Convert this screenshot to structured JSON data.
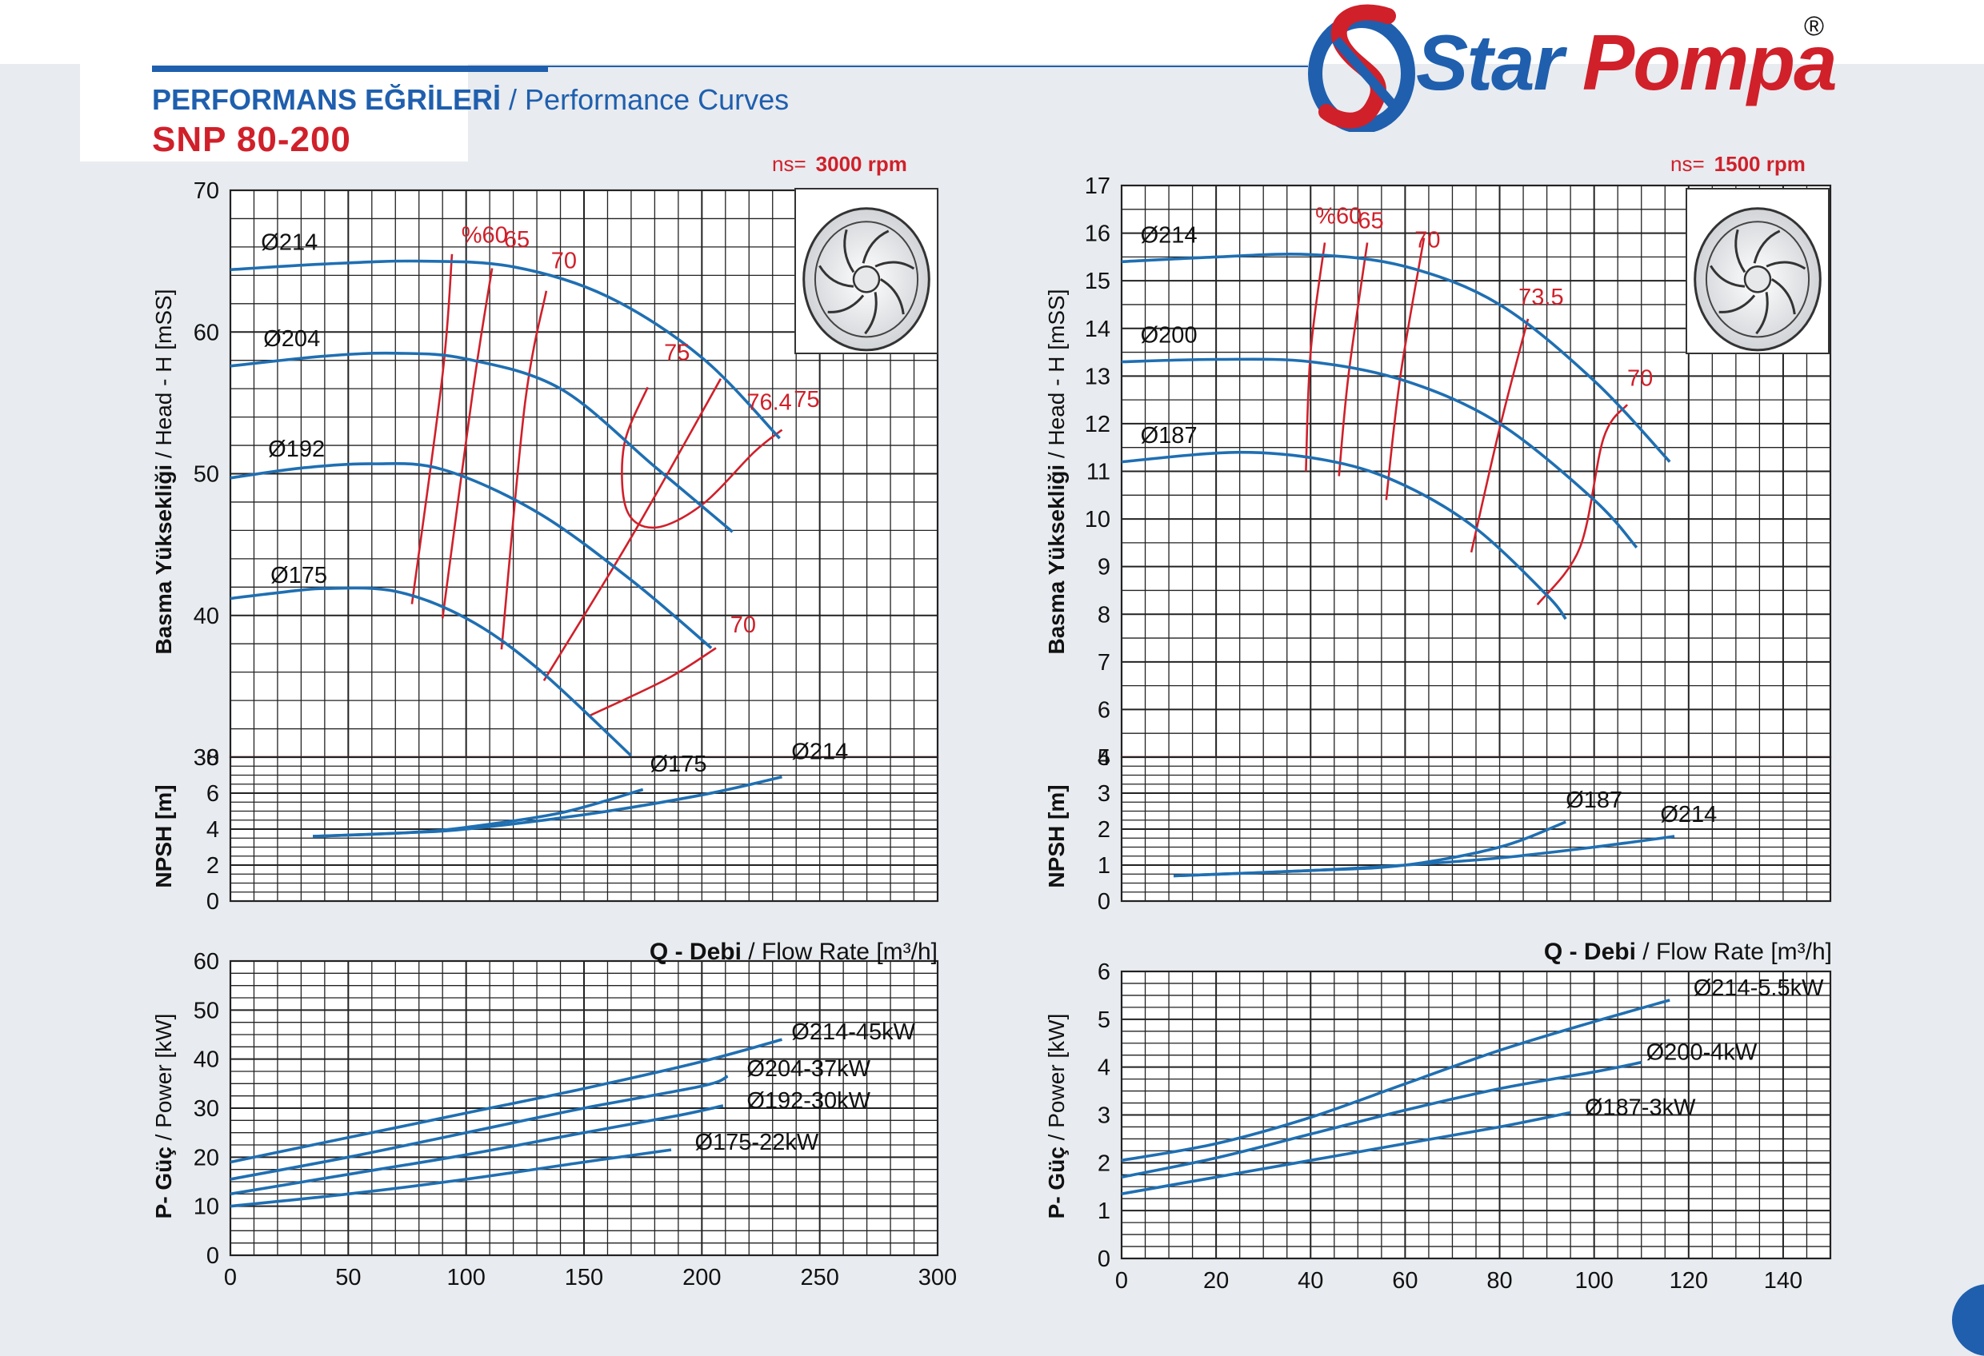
{
  "header": {
    "title_tr": "PERFORMANS EĞRİLERİ",
    "title_sep": " / ",
    "title_en": "Performance Curves",
    "model": "SNP 80-200",
    "logo_text_1": "Star",
    "logo_text_2": "Pompa",
    "logo_registered": "®"
  },
  "colors": {
    "curve": "#1f6fb2",
    "eff": "#d0202a",
    "grid": "#222222",
    "brand_blue": "#1f5fae",
    "brand_red": "#d0202a"
  },
  "icons": [
    "logo-s-emblem-icon",
    "impeller-image-icon"
  ],
  "left": {
    "rpm_label": "ns=",
    "rpm_value": "3000 rpm",
    "head_ylabel_tr": "Basma Yüksekliği",
    "head_ylabel_en": " / Head - H [mSS]",
    "npsh_ylabel": "NPSH [m]",
    "power_ylabel_tr": "P- Güç",
    "power_ylabel_en": " / Power [kW]",
    "xlabel_tr": "Q - Debi",
    "xlabel_en": " / Flow Rate [m³/h]"
  },
  "right": {
    "rpm_label": "ns=",
    "rpm_value": "1500 rpm",
    "head_ylabel_tr": "Basma Yüksekliği",
    "head_ylabel_en": " / Head - H [mSS]",
    "npsh_ylabel": "NPSH [m]",
    "power_ylabel_tr": "P- Güç",
    "power_ylabel_en": " / Power [kW]",
    "xlabel_tr": "Q - Debi",
    "xlabel_en": " / Flow Rate [m³/h]"
  },
  "chart_data": [
    {
      "id": "head-3000",
      "type": "line",
      "xlabel": "Q - Debi / Flow Rate [m³/h]",
      "ylabel": "Basma Yüksekliği / Head - H [mSS]",
      "xlim": [
        0,
        300
      ],
      "ylim": [
        30,
        70
      ],
      "xticks": [
        0,
        50,
        100,
        150,
        200,
        250,
        300
      ],
      "yticks": [
        30,
        40,
        50,
        60,
        70
      ],
      "grid": true,
      "series": [
        {
          "name": "Ø214",
          "points": [
            [
              0,
              64.4
            ],
            [
              40,
              64.8
            ],
            [
              80,
              65.0
            ],
            [
              120,
              64.6
            ],
            [
              160,
              62.5
            ],
            [
              200,
              58.2
            ],
            [
              233,
              52.5
            ]
          ]
        },
        {
          "name": "Ø204",
          "points": [
            [
              0,
              57.6
            ],
            [
              40,
              58.3
            ],
            [
              70,
              58.5
            ],
            [
              100,
              58.1
            ],
            [
              140,
              56.0
            ],
            [
              180,
              50.5
            ],
            [
              213,
              45.9
            ]
          ]
        },
        {
          "name": "Ø192",
          "points": [
            [
              0,
              49.7
            ],
            [
              30,
              50.4
            ],
            [
              60,
              50.7
            ],
            [
              90,
              50.3
            ],
            [
              130,
              47.3
            ],
            [
              170,
              42.5
            ],
            [
              204,
              37.7
            ]
          ]
        },
        {
          "name": "Ø175",
          "points": [
            [
              0,
              41.2
            ],
            [
              20,
              41.6
            ],
            [
              40,
              41.9
            ],
            [
              70,
              41.7
            ],
            [
              100,
              39.8
            ],
            [
              130,
              36.3
            ],
            [
              170,
              30.1
            ]
          ]
        }
      ],
      "efficiency": [
        {
          "label": "%60",
          "points": [
            [
              77,
              40.8
            ],
            [
              90,
              57.0
            ],
            [
              94,
              65.5
            ]
          ]
        },
        {
          "label": "65",
          "points": [
            [
              90,
              39.8
            ],
            [
              103,
              56.0
            ],
            [
              111,
              64.5
            ]
          ]
        },
        {
          "label": "70",
          "points": [
            [
              115,
              37.6
            ],
            [
              125,
              55.0
            ],
            [
              134,
              62.9
            ]
          ]
        },
        {
          "label": "75",
          "points": [
            [
              177,
              56.1
            ],
            [
              167,
              52.0
            ],
            [
              168,
              47.5
            ],
            [
              180,
              46.2
            ],
            [
              200,
              47.8
            ],
            [
              222,
              51.5
            ],
            [
              234,
              53.1
            ]
          ]
        },
        {
          "label": "76.4",
          "points": [
            [
              133,
              35.4
            ],
            [
              170,
              45.5
            ],
            [
              208,
              56.7
            ]
          ]
        },
        {
          "label": "70",
          "points": [
            [
              152,
              32.9
            ],
            [
              185,
              35.5
            ],
            [
              206,
              37.7
            ]
          ]
        }
      ],
      "eff_label_points": [
        {
          "text": "%60",
          "x": 98,
          "y": 66.3
        },
        {
          "text": "65",
          "x": 116,
          "y": 66.0
        },
        {
          "text": "70",
          "x": 136,
          "y": 64.5
        },
        {
          "text": "75",
          "x": 184,
          "y": 58.0
        },
        {
          "text": "76.4",
          "x": 219,
          "y": 54.5
        },
        {
          "text": "75",
          "x": 239,
          "y": 54.7
        },
        {
          "text": "70",
          "x": 212,
          "y": 38.8
        }
      ],
      "curve_labels": [
        {
          "text": "Ø214",
          "x": 13,
          "y": 65.8
        },
        {
          "text": "Ø204",
          "x": 14,
          "y": 59.0
        },
        {
          "text": "Ø192",
          "x": 16,
          "y": 51.2
        },
        {
          "text": "Ø175",
          "x": 17,
          "y": 42.3
        }
      ],
      "reference_line": 30
    },
    {
      "id": "npsh-3000",
      "type": "line",
      "ylabel": "NPSH [m]",
      "xlim": [
        0,
        300
      ],
      "ylim": [
        0,
        8
      ],
      "yticks": [
        0,
        2,
        4,
        6,
        8
      ],
      "grid": true,
      "series": [
        {
          "name": "Ø175",
          "points": [
            [
              35,
              3.6
            ],
            [
              75,
              3.8
            ],
            [
              100,
              4.1
            ],
            [
              140,
              4.9
            ],
            [
              175,
              6.2
            ]
          ]
        },
        {
          "name": "Ø214",
          "points": [
            [
              35,
              3.6
            ],
            [
              75,
              3.8
            ],
            [
              100,
              4.0
            ],
            [
              150,
              4.8
            ],
            [
              200,
              5.9
            ],
            [
              234,
              6.9
            ]
          ]
        }
      ],
      "curve_labels": [
        {
          "text": "Ø175",
          "x": 178,
          "y": 7.2
        },
        {
          "text": "Ø214",
          "x": 238,
          "y": 7.9
        }
      ]
    },
    {
      "id": "power-3000",
      "type": "line",
      "xlabel": "",
      "ylabel": "P- Güç / Power [kW]",
      "xlim": [
        0,
        300
      ],
      "ylim": [
        0,
        60
      ],
      "xticks": [
        0,
        50,
        100,
        150,
        200,
        250,
        300
      ],
      "yticks": [
        0,
        10,
        20,
        30,
        40,
        50,
        60
      ],
      "grid": true,
      "series": [
        {
          "name": "Ø214-45kW",
          "points": [
            [
              0,
              19.0
            ],
            [
              50,
              24.0
            ],
            [
              100,
              29.0
            ],
            [
              150,
              34.0
            ],
            [
              200,
              39.5
            ],
            [
              234,
              44.0
            ]
          ]
        },
        {
          "name": "Ø204-37kW",
          "points": [
            [
              0,
              15.5
            ],
            [
              50,
              20.0
            ],
            [
              100,
              25.0
            ],
            [
              150,
              30.0
            ],
            [
              200,
              34.5
            ],
            [
              211,
              36.5
            ]
          ]
        },
        {
          "name": "Ø192-30kW",
          "points": [
            [
              0,
              12.5
            ],
            [
              50,
              16.5
            ],
            [
              100,
              20.5
            ],
            [
              150,
              25.0
            ],
            [
              190,
              28.5
            ],
            [
              209,
              30.5
            ]
          ]
        },
        {
          "name": "Ø175-22kW",
          "points": [
            [
              0,
              10.0
            ],
            [
              50,
              12.5
            ],
            [
              100,
              15.5
            ],
            [
              150,
              19.0
            ],
            [
              187,
              21.5
            ]
          ]
        }
      ],
      "curve_labels": [
        {
          "text": "Ø214-45kW",
          "x": 238,
          "y": 44.0
        },
        {
          "text": "Ø204-37kW",
          "x": 219,
          "y": 36.5
        },
        {
          "text": "Ø192-30kW",
          "x": 219,
          "y": 30.0
        },
        {
          "text": "Ø175-22kW",
          "x": 197,
          "y": 21.5
        }
      ]
    },
    {
      "id": "head-1500",
      "type": "line",
      "xlabel": "Q - Debi / Flow Rate [m³/h]",
      "ylabel": "Basma Yüksekliği / Head - H [mSS]",
      "xlim": [
        0,
        150
      ],
      "ylim": [
        5,
        17
      ],
      "xticks": [
        0,
        20,
        40,
        60,
        80,
        100,
        120,
        140
      ],
      "yticks": [
        5,
        6,
        7,
        8,
        9,
        10,
        11,
        12,
        13,
        14,
        15,
        16,
        17
      ],
      "grid": true,
      "series": [
        {
          "name": "Ø214",
          "points": [
            [
              0,
              15.4
            ],
            [
              20,
              15.5
            ],
            [
              40,
              15.55
            ],
            [
              60,
              15.3
            ],
            [
              80,
              14.5
            ],
            [
              100,
              12.9
            ],
            [
              116,
              11.2
            ]
          ]
        },
        {
          "name": "Ø200",
          "points": [
            [
              0,
              13.3
            ],
            [
              20,
              13.35
            ],
            [
              40,
              13.3
            ],
            [
              60,
              12.9
            ],
            [
              80,
              12.0
            ],
            [
              100,
              10.4
            ],
            [
              109,
              9.4
            ]
          ]
        },
        {
          "name": "Ø187",
          "points": [
            [
              0,
              11.2
            ],
            [
              25,
              11.4
            ],
            [
              45,
              11.2
            ],
            [
              60,
              10.7
            ],
            [
              75,
              9.8
            ],
            [
              90,
              8.4
            ],
            [
              94,
              7.9
            ]
          ]
        }
      ],
      "efficiency": [
        {
          "label": "%60",
          "points": [
            [
              39,
              11.0
            ],
            [
              40,
              13.5
            ],
            [
              43,
              15.8
            ]
          ]
        },
        {
          "label": "65",
          "points": [
            [
              46,
              10.9
            ],
            [
              48,
              13.0
            ],
            [
              52,
              15.8
            ]
          ]
        },
        {
          "label": "70",
          "points": [
            [
              56,
              10.4
            ],
            [
              59,
              13.0
            ],
            [
              64,
              15.9
            ]
          ]
        },
        {
          "label": "73.5",
          "points": [
            [
              74,
              9.3
            ],
            [
              80,
              11.9
            ],
            [
              86,
              14.2
            ]
          ]
        },
        {
          "label": "70",
          "points": [
            [
              88,
              8.2
            ],
            [
              97,
              9.4
            ],
            [
              102,
              11.7
            ],
            [
              107,
              12.4
            ]
          ]
        }
      ],
      "eff_label_points": [
        {
          "text": "%60",
          "x": 41,
          "y": 16.2
        },
        {
          "text": "65",
          "x": 50,
          "y": 16.1
        },
        {
          "text": "70",
          "x": 62,
          "y": 15.7
        },
        {
          "text": "73.5",
          "x": 84,
          "y": 14.5
        },
        {
          "text": "70",
          "x": 107,
          "y": 12.8
        }
      ],
      "curve_labels": [
        {
          "text": "Ø214",
          "x": 4,
          "y": 15.8
        },
        {
          "text": "Ø200",
          "x": 4,
          "y": 13.7
        },
        {
          "text": "Ø187",
          "x": 4,
          "y": 11.6
        }
      ],
      "reference_line": 5
    },
    {
      "id": "npsh-1500",
      "type": "line",
      "ylabel": "NPSH [m]",
      "xlim": [
        0,
        150
      ],
      "ylim": [
        0,
        4
      ],
      "yticks": [
        0,
        1,
        2,
        3,
        4
      ],
      "grid": true,
      "series": [
        {
          "name": "Ø187",
          "points": [
            [
              11,
              0.7
            ],
            [
              40,
              0.85
            ],
            [
              60,
              1.0
            ],
            [
              80,
              1.5
            ],
            [
              94,
              2.2
            ]
          ]
        },
        {
          "name": "Ø214",
          "points": [
            [
              11,
              0.7
            ],
            [
              40,
              0.85
            ],
            [
              60,
              1.0
            ],
            [
              80,
              1.2
            ],
            [
              100,
              1.5
            ],
            [
              117,
              1.8
            ]
          ]
        }
      ],
      "curve_labels": [
        {
          "text": "Ø187",
          "x": 94,
          "y": 2.6
        },
        {
          "text": "Ø214",
          "x": 114,
          "y": 2.2
        }
      ]
    },
    {
      "id": "power-1500",
      "type": "line",
      "xlabel": "",
      "ylabel": "P- Güç / Power [kW]",
      "xlim": [
        0,
        150
      ],
      "ylim": [
        0,
        6
      ],
      "xticks": [
        0,
        20,
        40,
        60,
        80,
        100,
        120,
        140
      ],
      "yticks": [
        0,
        1,
        2,
        3,
        4,
        5,
        6
      ],
      "grid": true,
      "series": [
        {
          "name": "Ø214-5.5kW",
          "points": [
            [
              0,
              2.05
            ],
            [
              20,
              2.4
            ],
            [
              40,
              2.95
            ],
            [
              60,
              3.65
            ],
            [
              80,
              4.35
            ],
            [
              100,
              4.95
            ],
            [
              116,
              5.4
            ]
          ]
        },
        {
          "name": "Ø200-4kW",
          "points": [
            [
              0,
              1.7
            ],
            [
              20,
              2.1
            ],
            [
              40,
              2.6
            ],
            [
              60,
              3.1
            ],
            [
              80,
              3.55
            ],
            [
              100,
              3.9
            ],
            [
              110,
              4.1
            ]
          ]
        },
        {
          "name": "Ø187-3kW",
          "points": [
            [
              0,
              1.35
            ],
            [
              20,
              1.7
            ],
            [
              40,
              2.05
            ],
            [
              60,
              2.4
            ],
            [
              80,
              2.75
            ],
            [
              95,
              3.05
            ]
          ]
        }
      ],
      "curve_labels": [
        {
          "text": "Ø214-5.5kW",
          "x": 121,
          "y": 5.5
        },
        {
          "text": "Ø200-4kW",
          "x": 111,
          "y": 4.15
        },
        {
          "text": "Ø187-3kW",
          "x": 98,
          "y": 3.0
        }
      ]
    }
  ]
}
